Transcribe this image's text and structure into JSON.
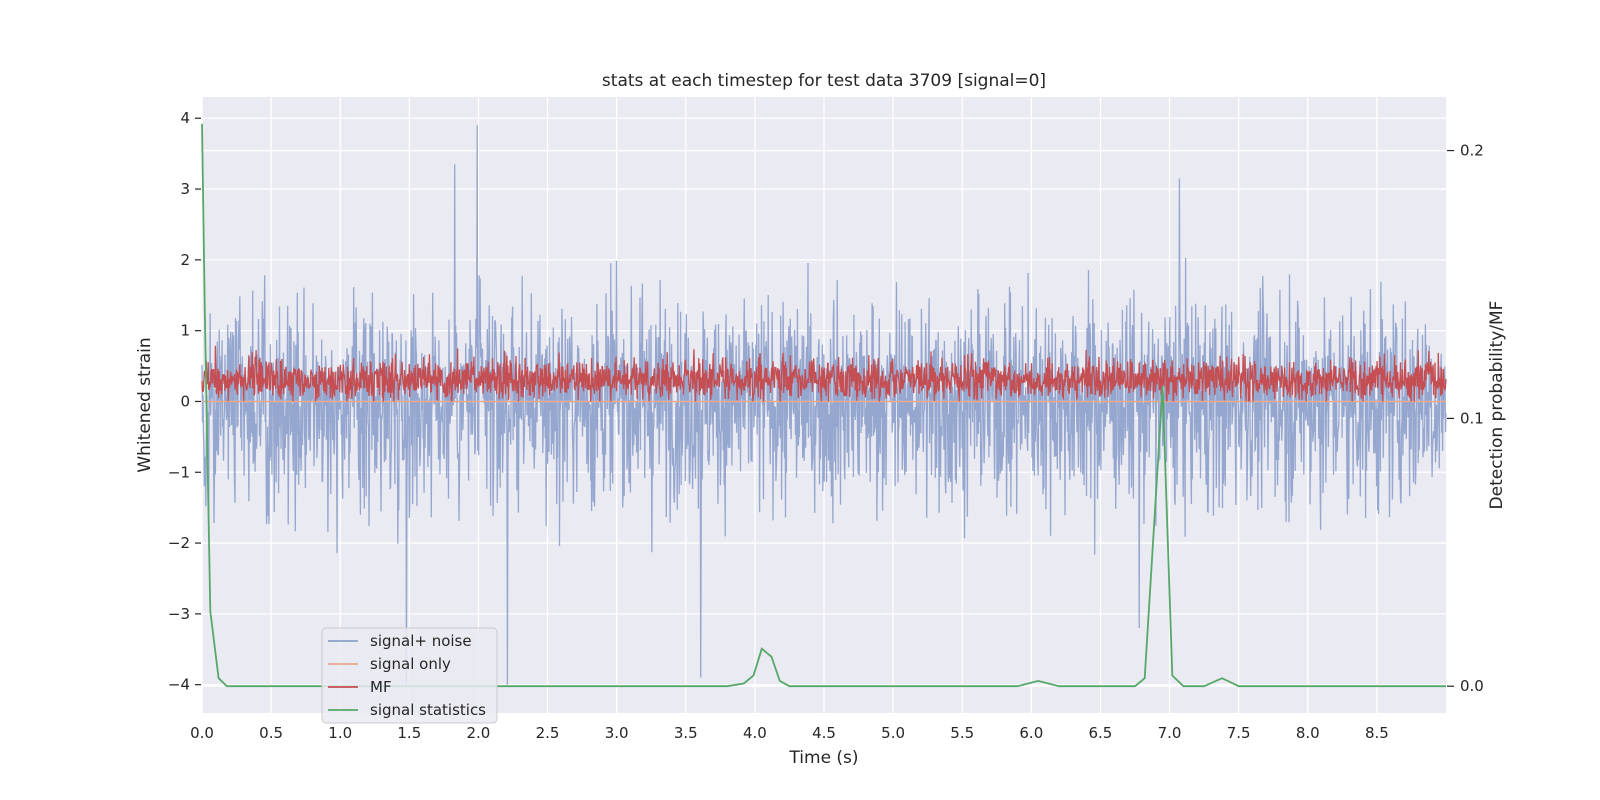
{
  "chart_data": {
    "type": "line",
    "title": "stats at each timestep for test data 3709 [signal=0]",
    "xlabel": "Time (s)",
    "ylabel": "Whitened strain",
    "y2label": "Detection probability/MF",
    "xlim": [
      0,
      9.0
    ],
    "ylim": [
      -4.4,
      4.3
    ],
    "y2lim": [
      -0.01,
      0.22
    ],
    "xticks": [
      "0.0",
      "0.5",
      "1.0",
      "1.5",
      "2.0",
      "2.5",
      "3.0",
      "3.5",
      "4.0",
      "4.5",
      "5.0",
      "5.5",
      "6.0",
      "6.5",
      "7.0",
      "7.5",
      "8.0",
      "8.5"
    ],
    "yticks": [
      "4",
      "3",
      "2",
      "1",
      "0",
      "−1",
      "−2",
      "−3",
      "−4"
    ],
    "y2ticks": [
      "0.2",
      "0.1",
      "0.0"
    ],
    "grid": true,
    "legend_position": "lower-left",
    "series": [
      {
        "name": "signal+ noise",
        "color": "#8da0cb",
        "axis": "left",
        "noise_amplitude": 1.2,
        "peaks": [
          [
            1.83,
            3.35
          ],
          [
            1.99,
            3.9
          ],
          [
            7.07,
            3.15
          ],
          [
            1.48,
            -4.0
          ],
          [
            3.61,
            -3.9
          ],
          [
            2.21,
            -4.0
          ],
          [
            6.78,
            -3.2
          ]
        ]
      },
      {
        "name": "signal only",
        "color": "#e9a98e",
        "axis": "left",
        "values": [
          0,
          0
        ]
      },
      {
        "name": "MF",
        "color": "#c44e52",
        "axis": "left",
        "baseline": 0.3,
        "range": [
          0.0,
          1.0
        ]
      },
      {
        "name": "signal statistics",
        "color": "#55a868",
        "axis": "right",
        "x": [
          0.0,
          0.02,
          0.06,
          0.12,
          0.18,
          0.3,
          0.6,
          3.8,
          3.92,
          3.99,
          4.05,
          4.12,
          4.18,
          4.25,
          4.4,
          5.9,
          6.05,
          6.2,
          6.75,
          6.82,
          6.95,
          7.02,
          7.1,
          7.25,
          7.38,
          7.5,
          9.0
        ],
        "y": [
          0.21,
          0.14,
          0.028,
          0.003,
          0.0,
          0.0,
          0.0,
          0.0,
          0.001,
          0.004,
          0.014,
          0.011,
          0.002,
          0.0,
          0.0,
          0.0,
          0.002,
          0.0,
          0.0,
          0.003,
          0.112,
          0.004,
          0.0,
          0.0,
          0.003,
          0.0,
          0.0
        ]
      }
    ]
  }
}
